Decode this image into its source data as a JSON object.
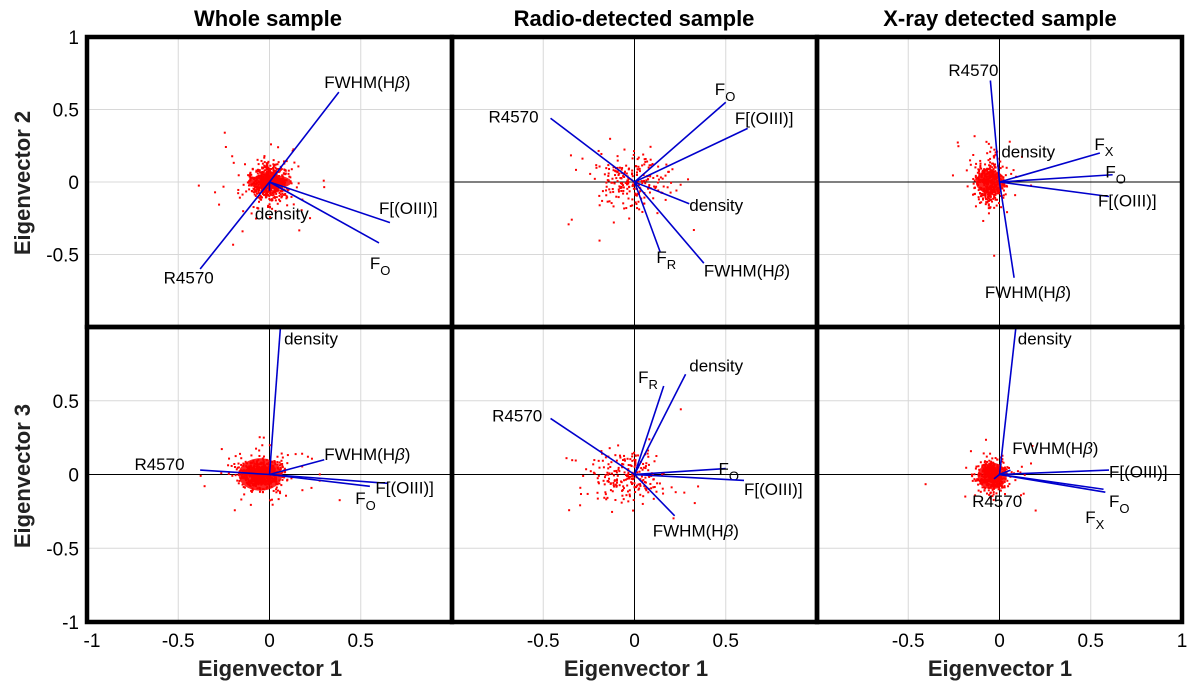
{
  "chart_data": {
    "type": "scatter",
    "description_kind": "PCA biplot grid",
    "columns": [
      {
        "title": "Whole sample"
      },
      {
        "title": "Radio-detected sample"
      },
      {
        "title": "X-ray detected sample"
      }
    ],
    "rows": [
      {
        "ylabel": "Eigenvector 2"
      },
      {
        "ylabel": "Eigenvector 3"
      }
    ],
    "xlabel": "Eigenvector 1",
    "xlim": [
      -1,
      1
    ],
    "row_ylims": [
      [
        -1,
        1
      ],
      [
        -1,
        1
      ]
    ],
    "x_tick_labels": {
      "0": [
        "-1",
        "-0.5",
        "0",
        "0.5"
      ],
      "1": [
        "-0.5",
        "0",
        "0.5"
      ],
      "2": [
        "-0.5",
        "0",
        "0.5",
        "1"
      ]
    },
    "y_tick_labels": {
      "0": [
        "1",
        "0.5",
        "0",
        "-0.5"
      ],
      "1": [
        "0.5",
        "0",
        "-0.5",
        "-1"
      ]
    },
    "colors": {
      "vector": "#0000cc",
      "points": "#ff0000",
      "frame": "#000000",
      "grid": "#d8d8d8"
    },
    "panels": [
      {
        "row": 0,
        "col": 0,
        "cloud": {
          "cx": 0.0,
          "cy": 0.0,
          "sx": 0.05,
          "sy": 0.06,
          "n": 650,
          "ell": [
            0.12,
            0.1
          ]
        },
        "vectors": [
          {
            "name": "FWHM(Hβ)",
            "main": "FWHM(H",
            "greek": "β",
            "end": [
              0.38,
              0.62
            ],
            "label": [
              0.3,
              0.65
            ]
          },
          {
            "name": "density",
            "main": "density",
            "end": [
              0.0,
              -0.06
            ],
            "label": [
              -0.08,
              -0.26
            ]
          },
          {
            "name": "F[(OIII)]",
            "main": "F[(OIII)]",
            "end": [
              0.66,
              -0.28
            ],
            "label": [
              0.6,
              -0.22
            ]
          },
          {
            "name": "FO",
            "main": "F",
            "sub": "O",
            "end": [
              0.6,
              -0.42
            ],
            "label": [
              0.55,
              -0.6
            ]
          },
          {
            "name": "R4570",
            "main": "R4570",
            "end": [
              -0.38,
              -0.6
            ],
            "label": [
              -0.58,
              -0.7
            ]
          }
        ]
      },
      {
        "row": 0,
        "col": 1,
        "axes_lines": true,
        "cloud": {
          "cx": -0.02,
          "cy": 0.0,
          "sx": 0.1,
          "sy": 0.09,
          "n": 230
        },
        "vectors": [
          {
            "name": "FO",
            "main": "F",
            "sub": "O",
            "end": [
              0.5,
              0.55
            ],
            "label": [
              0.44,
              0.6
            ]
          },
          {
            "name": "F[(OIII)]",
            "main": "F[(OIII)]",
            "end": [
              0.62,
              0.37
            ],
            "label": [
              0.55,
              0.4
            ]
          },
          {
            "name": "R4570",
            "main": "R4570",
            "end": [
              -0.46,
              0.44
            ],
            "label": [
              -0.8,
              0.41
            ]
          },
          {
            "name": "density",
            "main": "density",
            "end": [
              0.3,
              -0.15
            ],
            "label": [
              0.3,
              -0.2
            ]
          },
          {
            "name": "FR",
            "main": "F",
            "sub": "R",
            "end": [
              0.14,
              -0.48
            ],
            "label": [
              0.12,
              -0.56
            ]
          },
          {
            "name": "FWHM(Hβ)",
            "main": "FWHM(H",
            "greek": "β",
            "end": [
              0.38,
              -0.56
            ],
            "label": [
              0.38,
              -0.65
            ]
          }
        ]
      },
      {
        "row": 0,
        "col": 2,
        "axes_lines": true,
        "cloud": {
          "cx": -0.05,
          "cy": 0.0,
          "sx": 0.04,
          "sy": 0.08,
          "n": 420,
          "ell": [
            0.08,
            0.16
          ]
        },
        "vectors": [
          {
            "name": "R4570",
            "main": "R4570",
            "end": [
              -0.05,
              0.7
            ],
            "label": [
              -0.28,
              0.73
            ]
          },
          {
            "name": "density",
            "main": "density",
            "end": [
              0.02,
              0.0
            ],
            "label": [
              0.01,
              0.17
            ]
          },
          {
            "name": "FX",
            "main": "F",
            "sub": "X",
            "end": [
              0.55,
              0.2
            ],
            "label": [
              0.52,
              0.22
            ]
          },
          {
            "name": "FO",
            "main": "F",
            "sub": "O",
            "end": [
              0.62,
              0.05
            ],
            "label": [
              0.58,
              0.03
            ]
          },
          {
            "name": "F[(OIII)]",
            "main": "F[(OIII)]",
            "end": [
              0.6,
              -0.1
            ],
            "label": [
              0.54,
              -0.17
            ]
          },
          {
            "name": "FWHM(Hβ)",
            "main": "FWHM(H",
            "greek": "β",
            "end": [
              0.08,
              -0.66
            ],
            "label": [
              -0.08,
              -0.8
            ]
          }
        ]
      },
      {
        "row": 1,
        "col": 0,
        "axes_lines": true,
        "cloud": {
          "cx": -0.05,
          "cy": 0.0,
          "sx": 0.06,
          "sy": 0.05,
          "n": 650,
          "ell": [
            0.12,
            0.22
          ]
        },
        "vectors": [
          {
            "name": "density",
            "main": "density",
            "end": [
              0.06,
              1.0
            ],
            "label": [
              0.08,
              0.88
            ]
          },
          {
            "name": "R4570",
            "main": "R4570",
            "end": [
              -0.38,
              0.03
            ],
            "label": [
              -0.74,
              0.03
            ]
          },
          {
            "name": "FWHM(Hβ)",
            "main": "FWHM(H",
            "greek": "β",
            "end": [
              0.3,
              0.1
            ],
            "label": [
              0.3,
              0.1
            ]
          },
          {
            "name": "FO",
            "main": "F",
            "sub": "O",
            "end": [
              0.55,
              -0.08
            ],
            "label": [
              0.47,
              -0.2
            ]
          },
          {
            "name": "F[(OIII)]",
            "main": "F[(OIII)]",
            "end": [
              0.65,
              -0.06
            ],
            "label": [
              0.58,
              -0.13
            ]
          }
        ]
      },
      {
        "row": 1,
        "col": 1,
        "axes_lines": true,
        "cloud": {
          "cx": -0.03,
          "cy": -0.02,
          "sx": 0.1,
          "sy": 0.08,
          "n": 230
        },
        "vectors": [
          {
            "name": "FR",
            "main": "F",
            "sub": "R",
            "end": [
              0.16,
              0.6
            ],
            "label": [
              0.02,
              0.62
            ]
          },
          {
            "name": "density",
            "main": "density",
            "end": [
              0.28,
              0.68
            ],
            "label": [
              0.3,
              0.7
            ]
          },
          {
            "name": "R4570",
            "main": "R4570",
            "end": [
              -0.46,
              0.38
            ],
            "label": [
              -0.78,
              0.36
            ]
          },
          {
            "name": "FO",
            "main": "F",
            "sub": "O",
            "end": [
              0.5,
              0.04
            ],
            "label": [
              0.46,
              0.0
            ]
          },
          {
            "name": "F[(OIII)]",
            "main": "F[(OIII)]",
            "end": [
              0.6,
              -0.04
            ],
            "label": [
              0.6,
              -0.14
            ]
          },
          {
            "name": "FWHM(Hβ)",
            "main": "FWHM(H",
            "greek": "β",
            "end": [
              0.22,
              -0.28
            ],
            "label": [
              0.1,
              -0.42
            ]
          }
        ]
      },
      {
        "row": 1,
        "col": 2,
        "axes_lines": true,
        "cloud": {
          "cx": -0.04,
          "cy": -0.01,
          "sx": 0.04,
          "sy": 0.05,
          "n": 420,
          "ell": [
            0.08,
            0.18
          ]
        },
        "vectors": [
          {
            "name": "density",
            "main": "density",
            "end": [
              0.09,
              1.0
            ],
            "label": [
              0.1,
              0.88
            ]
          },
          {
            "name": "FWHM(Hβ)",
            "main": "FWHM(H",
            "greek": "β",
            "end": [
              0.06,
              0.03
            ],
            "label": [
              0.07,
              0.14
            ]
          },
          {
            "name": "F[(OIII)]",
            "main": "F[(OIII)]",
            "end": [
              0.6,
              0.03
            ],
            "label": [
              0.6,
              -0.02
            ]
          },
          {
            "name": "FO",
            "main": "F",
            "sub": "O",
            "end": [
              0.58,
              -0.12
            ],
            "label": [
              0.6,
              -0.22
            ]
          },
          {
            "name": "FX",
            "main": "F",
            "sub": "X",
            "end": [
              0.57,
              -0.1
            ],
            "label": [
              0.47,
              -0.33
            ]
          },
          {
            "name": "R4570",
            "main": "R4570",
            "end": [
              -0.03,
              -0.03
            ],
            "label": [
              -0.15,
              -0.22
            ]
          }
        ]
      }
    ]
  }
}
